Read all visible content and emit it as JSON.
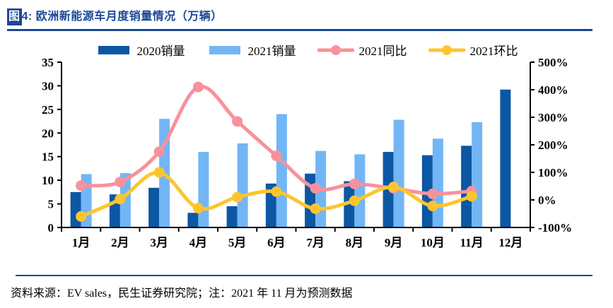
{
  "header": {
    "title_prefix": "图",
    "title_rest": "4: 欧洲新能源车月度销量情况（万辆）"
  },
  "footer": {
    "source": "资料来源：EV sales，民生证券研究院；注：2021 年 11 月为预测数据"
  },
  "colors": {
    "navy_accent": "#1B4796",
    "bar_2020": "#0C57A4",
    "bar_2021": "#72B6F6",
    "line_yoy": "#F8919C",
    "line_mom": "#FDC52D",
    "axis": "#000000"
  },
  "chart_data": {
    "type": "bar",
    "subtype": "combo-bar-line-dual-axis",
    "title": "欧洲新能源车月度销量情况（万辆）",
    "categories": [
      "1月",
      "2月",
      "3月",
      "4月",
      "5月",
      "6月",
      "7月",
      "8月",
      "9月",
      "10月",
      "11月",
      "12月"
    ],
    "series": [
      {
        "name": "2020销量",
        "type": "bar",
        "axis": "left",
        "color": "#0C57A4",
        "values": [
          7.5,
          7.0,
          8.4,
          3.1,
          4.5,
          9.3,
          11.4,
          9.8,
          16.0,
          15.3,
          17.3,
          29.2
        ]
      },
      {
        "name": "2021销量",
        "type": "bar",
        "axis": "left",
        "color": "#72B6F6",
        "values": [
          11.3,
          11.5,
          23.0,
          16.0,
          17.8,
          24.0,
          16.2,
          15.5,
          22.8,
          18.8,
          22.3,
          null
        ]
      },
      {
        "name": "2021同比",
        "type": "line",
        "axis": "right",
        "unit": "%",
        "color": "#F8919C",
        "values": [
          52,
          65,
          175,
          410,
          285,
          160,
          42,
          58,
          42,
          22,
          32,
          null
        ]
      },
      {
        "name": "2021环比",
        "type": "line",
        "axis": "right",
        "unit": "%",
        "color": "#FDC52D",
        "values": [
          -60,
          3,
          100,
          -30,
          10,
          30,
          -32,
          -3,
          47,
          -22,
          13,
          null
        ]
      }
    ],
    "left_axis": {
      "min": 0,
      "max": 35,
      "tick_step": 5,
      "tick_labels": [
        "0",
        "5",
        "10",
        "15",
        "20",
        "25",
        "30",
        "35"
      ]
    },
    "right_axis": {
      "min": -100,
      "max": 500,
      "tick_step": 100,
      "tick_labels": [
        "-100%",
        "0%",
        "100%",
        "200%",
        "300%",
        "400%",
        "500%"
      ]
    },
    "grid": false,
    "legend_position": "top-center",
    "note": "2021 年 11 月为预测数据"
  }
}
